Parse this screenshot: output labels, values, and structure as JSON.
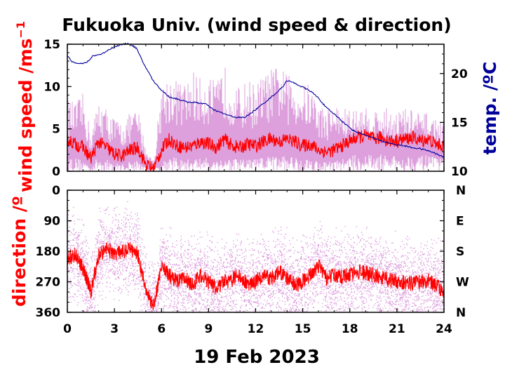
{
  "chart_data": [
    {
      "type": "line",
      "title": "Fukuoka Univ. (wind speed & direction)",
      "ylabel": "wind speed /ms",
      "ylabel_sup": "−1",
      "y2label": "temp. /ºC",
      "xlim": [
        0,
        24
      ],
      "ylim": [
        0,
        15
      ],
      "y2lim": [
        10,
        23
      ],
      "x_ticks": [
        "0",
        "3",
        "6",
        "9",
        "12",
        "15",
        "18",
        "21",
        "24"
      ],
      "y_ticks": [
        "0",
        "5",
        "10",
        "15"
      ],
      "y2_ticks": [
        "10",
        "15",
        "20"
      ],
      "colors": {
        "wind_mean": "#ff0000",
        "wind_gust": "#dda0dd",
        "temperature": "#00009a"
      },
      "series": [
        {
          "role": "wind_mean",
          "x": [
            0,
            0.5,
            1,
            1.5,
            2,
            2.5,
            3,
            3.5,
            4,
            4.5,
            5,
            5.5,
            6,
            6.5,
            7,
            7.5,
            8,
            8.5,
            9,
            9.5,
            10,
            10.5,
            11,
            11.5,
            12,
            12.5,
            13,
            13.5,
            14,
            14.5,
            15,
            15.5,
            16,
            16.5,
            17,
            17.5,
            18,
            18.5,
            19,
            19.5,
            20,
            20.5,
            21,
            21.5,
            22,
            22.5,
            23,
            23.5,
            24
          ],
          "y": [
            3.8,
            3.2,
            2.8,
            1.5,
            3.5,
            2.8,
            2.0,
            1.8,
            2.5,
            2.8,
            0.8,
            0.3,
            2.5,
            3.8,
            3.0,
            2.8,
            3.0,
            3.5,
            3.2,
            2.8,
            3.8,
            3.0,
            2.8,
            3.2,
            3.0,
            3.5,
            3.8,
            3.5,
            3.8,
            3.5,
            3.0,
            3.2,
            2.5,
            2.3,
            2.5,
            3.0,
            3.6,
            4.0,
            4.2,
            3.8,
            4.0,
            3.6,
            3.6,
            3.8,
            4.0,
            3.6,
            3.8,
            3.2,
            3.0
          ]
        },
        {
          "role": "wind_gust",
          "x": [
            0,
            0.5,
            1,
            1.5,
            2,
            2.5,
            3,
            3.5,
            4,
            4.5,
            5,
            5.5,
            6,
            6.5,
            7,
            7.5,
            8,
            8.5,
            9,
            9.5,
            10,
            10.5,
            11,
            11.5,
            12,
            12.5,
            13,
            13.5,
            14,
            14.5,
            15,
            15.5,
            16,
            16.5,
            17,
            17.5,
            18,
            18.5,
            19,
            19.5,
            20,
            20.5,
            21,
            21.5,
            22,
            22.5,
            23,
            23.5,
            24
          ],
          "y": [
            7.5,
            7.0,
            8.0,
            4.0,
            7.5,
            6.5,
            5.5,
            5.0,
            6.0,
            6.5,
            2.5,
            1.0,
            9.0,
            10.0,
            9.5,
            9.0,
            10.5,
            9.5,
            10.0,
            9.0,
            11.0,
            9.5,
            8.5,
            9.5,
            9.0,
            10.0,
            10.5,
            11.0,
            10.0,
            9.5,
            9.0,
            9.0,
            7.0,
            6.5,
            7.0,
            6.5,
            6.5,
            6.5,
            6.5,
            6.5,
            6.5,
            6.5,
            6.5,
            6.5,
            6.5,
            6.0,
            6.0,
            5.5,
            5.0
          ]
        },
        {
          "role": "temperature",
          "axis": "right",
          "x": [
            0,
            0.3,
            1,
            1.4,
            1.6,
            2.2,
            2.8,
            3.3,
            3.9,
            4.4,
            4.8,
            5.5,
            6.0,
            6.5,
            7.0,
            7.6,
            8.3,
            8.8,
            9.3,
            9.8,
            10.3,
            10.8,
            11.3,
            12.0,
            12.7,
            13.3,
            13.7,
            14.0,
            14.5,
            15.0,
            15.5,
            16.0,
            16.5,
            17.2,
            17.8,
            18.3,
            19.0,
            19.5,
            20.0,
            20.5,
            21.0,
            21.5,
            22.0,
            22.5,
            23.0,
            23.5,
            24.0
          ],
          "y": [
            21.8,
            21.2,
            21.0,
            21.3,
            21.8,
            22.0,
            22.6,
            22.9,
            23.1,
            22.6,
            21.2,
            19.2,
            18.3,
            17.6,
            17.4,
            17.1,
            17.0,
            16.9,
            16.3,
            16.0,
            15.7,
            15.5,
            15.5,
            16.3,
            17.2,
            18.0,
            18.6,
            19.3,
            19.0,
            18.6,
            18.2,
            17.5,
            16.5,
            15.6,
            14.7,
            14.1,
            13.7,
            13.4,
            13.1,
            12.9,
            12.7,
            12.6,
            12.4,
            12.3,
            12.1,
            11.8,
            11.4
          ]
        }
      ]
    },
    {
      "type": "scatter",
      "ylabel": "direction /º",
      "xlabel": "19 Feb 2023",
      "xlim": [
        0,
        24
      ],
      "ylim": [
        0,
        360
      ],
      "y_inverted": true,
      "x_ticks": [
        "0",
        "3",
        "6",
        "9",
        "12",
        "15",
        "18",
        "21",
        "24"
      ],
      "y_ticks": [
        "0",
        "90",
        "180",
        "270",
        "360"
      ],
      "y2_ticks": [
        "N",
        "E",
        "S",
        "W",
        "N"
      ],
      "colors": {
        "direction_mean": "#ff0000",
        "direction_instant": "#dda0dd"
      },
      "series": [
        {
          "role": "direction_mean",
          "x": [
            0,
            0.5,
            1,
            1.5,
            2,
            2.5,
            3,
            3.5,
            4,
            4.5,
            5,
            5.5,
            6,
            6.5,
            7,
            7.5,
            8,
            8.5,
            9,
            9.5,
            10,
            10.5,
            11,
            11.5,
            12,
            12.5,
            13,
            13.5,
            14,
            14.5,
            15,
            15.5,
            16,
            16.5,
            17,
            17.5,
            18,
            18.5,
            19,
            19.5,
            20,
            20.5,
            21,
            21.5,
            22,
            22.5,
            23,
            23.5,
            24
          ],
          "y": [
            200,
            190,
            230,
            300,
            190,
            175,
            185,
            180,
            175,
            190,
            300,
            340,
            230,
            250,
            270,
            260,
            280,
            250,
            270,
            290,
            270,
            265,
            250,
            280,
            270,
            250,
            260,
            240,
            260,
            280,
            270,
            250,
            220,
            260,
            250,
            255,
            250,
            240,
            245,
            250,
            255,
            265,
            270,
            272,
            275,
            270,
            265,
            280,
            300
          ]
        }
      ]
    }
  ]
}
